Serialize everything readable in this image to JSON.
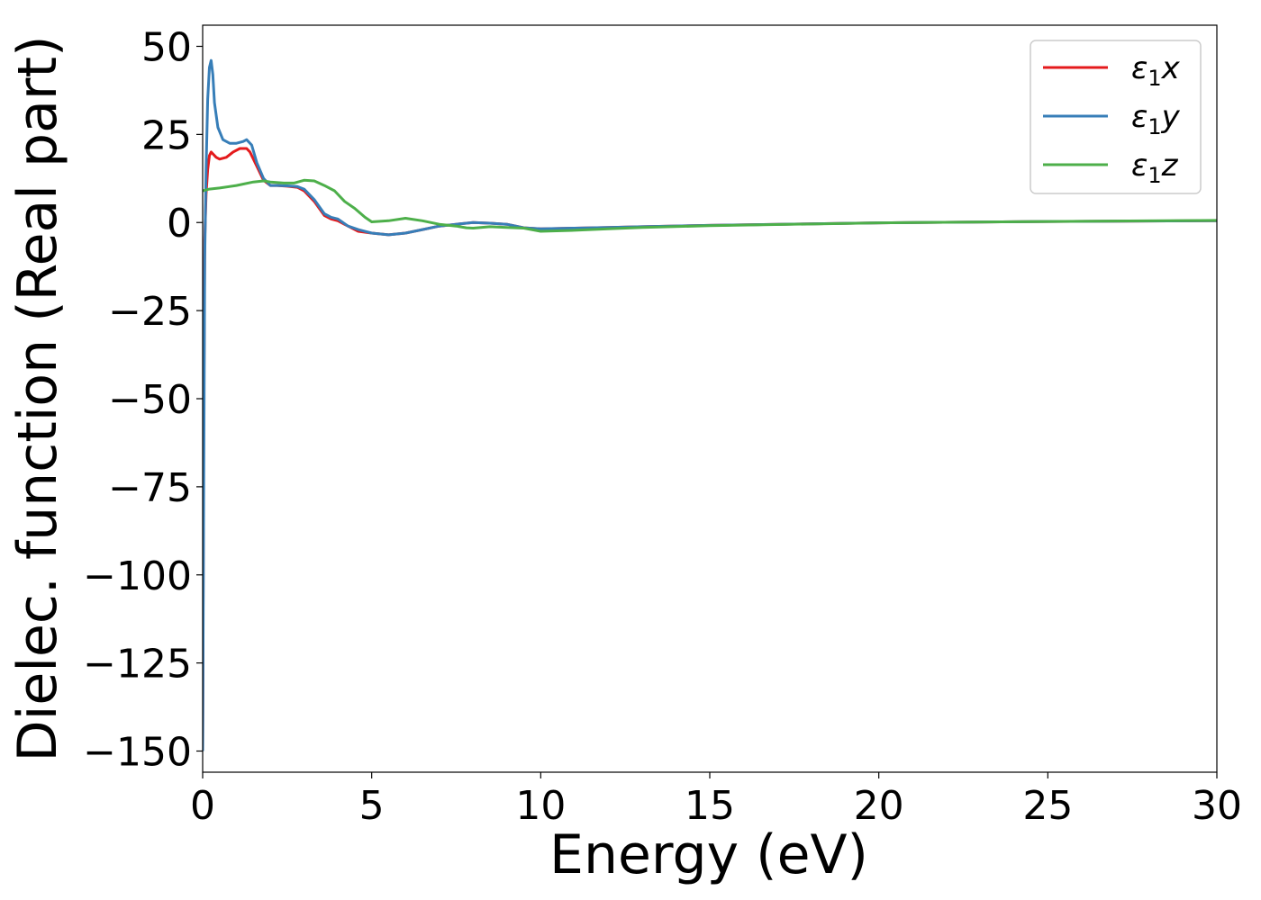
{
  "chart_data": {
    "type": "line",
    "title": "",
    "xlabel": "Energy (eV)",
    "ylabel": "Dielec. function (Real part)",
    "xlim": [
      0,
      30
    ],
    "ylim": [
      -156,
      56
    ],
    "xticks": [
      0,
      5,
      10,
      15,
      20,
      25,
      30
    ],
    "xtick_labels": [
      "0",
      "5",
      "10",
      "15",
      "20",
      "25",
      "30"
    ],
    "yticks": [
      50,
      25,
      0,
      -25,
      -50,
      -75,
      -100,
      -125,
      -150
    ],
    "ytick_labels": [
      "50",
      "25",
      "0",
      "−25",
      "−50",
      "−75",
      "−100",
      "−125",
      "−150"
    ],
    "grid": false,
    "legend_position": "top-right",
    "series": [
      {
        "name": "ε1x",
        "legend_main": "ε",
        "legend_sub": "1",
        "legend_var": "x",
        "color": "#e41a1c",
        "x": [
          0.0,
          0.03,
          0.06,
          0.1,
          0.15,
          0.2,
          0.25,
          0.3,
          0.4,
          0.5,
          0.7,
          0.9,
          1.1,
          1.3,
          1.4,
          1.6,
          1.8,
          2.0,
          2.2,
          2.5,
          2.8,
          3.0,
          3.3,
          3.6,
          3.8,
          4.0,
          4.3,
          4.6,
          5.0,
          5.5,
          6.0,
          6.5,
          7.0,
          7.5,
          8.0,
          8.5,
          9.0,
          9.5,
          10.0,
          11.0,
          12.0,
          13.0,
          15.0,
          20.0,
          25.0,
          30.0
        ],
        "y": [
          -150,
          -60,
          -5,
          8,
          15,
          19,
          20,
          19.5,
          18.5,
          18,
          18.5,
          20,
          21,
          21,
          20,
          16,
          12,
          10.5,
          10.5,
          10.3,
          10,
          9,
          6,
          2,
          1,
          0.5,
          -1,
          -2.5,
          -3,
          -3.5,
          -3,
          -2,
          -1,
          -0.5,
          0,
          -0.2,
          -0.5,
          -1.5,
          -1.8,
          -1.6,
          -1.4,
          -1.2,
          -0.8,
          -0.1,
          0.3,
          0.5
        ]
      },
      {
        "name": "ε1y",
        "legend_main": "ε",
        "legend_sub": "1",
        "legend_var": "y",
        "color": "#377eb8",
        "x": [
          0.0,
          0.03,
          0.06,
          0.1,
          0.15,
          0.2,
          0.25,
          0.3,
          0.35,
          0.45,
          0.6,
          0.8,
          1.0,
          1.2,
          1.3,
          1.45,
          1.6,
          1.8,
          2.0,
          2.2,
          2.5,
          2.8,
          3.0,
          3.3,
          3.6,
          3.8,
          4.0,
          4.3,
          4.6,
          5.0,
          5.5,
          6.0,
          6.5,
          7.0,
          7.5,
          8.0,
          8.5,
          9.0,
          9.5,
          10.0,
          11.0,
          12.0,
          13.0,
          15.0,
          20.0,
          25.0,
          30.0
        ],
        "y": [
          -150,
          -80,
          -10,
          15,
          35,
          44,
          46,
          42,
          34,
          27,
          23.5,
          22.5,
          22.5,
          23,
          23.5,
          22,
          17,
          12.5,
          10.5,
          10.5,
          10.4,
          10.2,
          9.5,
          6.5,
          2.5,
          1.5,
          1,
          -1,
          -2,
          -3,
          -3.5,
          -3,
          -2,
          -1,
          -0.5,
          0,
          -0.2,
          -0.5,
          -1.5,
          -1.8,
          -1.6,
          -1.4,
          -1.2,
          -0.8,
          -0.1,
          0.3,
          0.5
        ]
      },
      {
        "name": "ε1z",
        "legend_main": "ε",
        "legend_sub": "1",
        "legend_var": "z",
        "color": "#4daf4a",
        "x": [
          0.0,
          0.2,
          0.5,
          1.0,
          1.5,
          1.8,
          2.0,
          2.4,
          2.7,
          3.0,
          3.3,
          3.6,
          3.9,
          4.2,
          4.5,
          4.8,
          5.0,
          5.5,
          6.0,
          6.5,
          7.0,
          7.5,
          7.8,
          8.0,
          8.5,
          9.0,
          9.5,
          10.0,
          11.0,
          12.0,
          13.0,
          15.0,
          20.0,
          25.0,
          30.0
        ],
        "y": [
          9,
          9.5,
          9.8,
          10.5,
          11.5,
          11.8,
          11.5,
          11.2,
          11.2,
          12,
          11.8,
          10.5,
          9,
          6,
          4,
          1.5,
          0.2,
          0.5,
          1.2,
          0.5,
          -0.5,
          -1,
          -1.5,
          -1.6,
          -1.2,
          -1.4,
          -1.6,
          -2.5,
          -2.2,
          -1.8,
          -1.4,
          -0.9,
          -0.1,
          0.3,
          0.6
        ]
      }
    ]
  }
}
